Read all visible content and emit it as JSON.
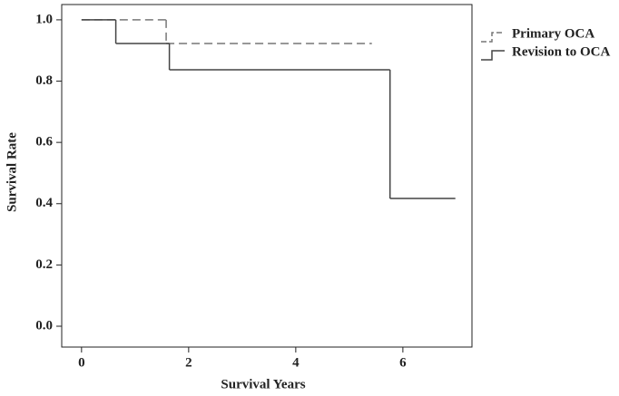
{
  "chart_data": {
    "type": "step",
    "xlabel": "Survival Years",
    "ylabel": "Survival Rate",
    "xlim": [
      -0.37,
      7.29
    ],
    "ylim": [
      -0.068,
      1.05
    ],
    "xticks": [
      0,
      2,
      4,
      6
    ],
    "yticks": [
      {
        "value": 0,
        "label": "0.0"
      },
      0.2,
      0.4,
      0.6,
      0.8,
      {
        "value": 1,
        "label": "1.0"
      }
    ],
    "series": [
      {
        "name": "Primary OCA",
        "color": "#777777",
        "dash": "dashed",
        "x": [
          0,
          1.58,
          5.42
        ],
        "values": [
          1.0,
          0.923,
          0.923
        ]
      },
      {
        "name": "Revision to OCA",
        "color": "#444444",
        "dash": "solid",
        "x": [
          0,
          0.64,
          1.64,
          5.76,
          6.98
        ],
        "values": [
          1.0,
          0.923,
          0.837,
          0.417,
          0.417
        ]
      }
    ]
  }
}
